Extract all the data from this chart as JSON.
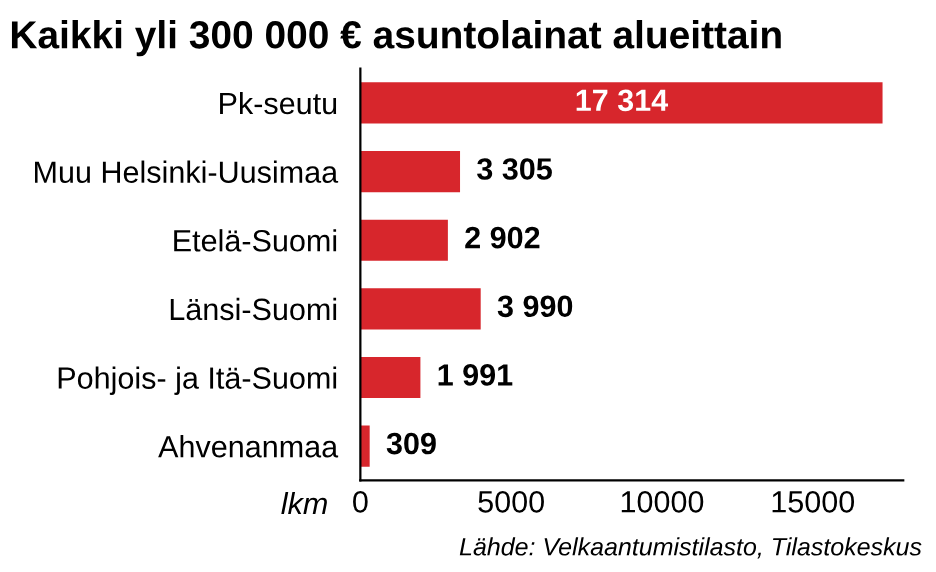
{
  "chart_data": {
    "type": "bar",
    "orientation": "horizontal",
    "title": "Kaikki yli 300 000 € asuntolainat alueittain",
    "categories": [
      "Pk-seutu",
      "Muu Helsinki-Uusimaa",
      "Etelä-Suomi",
      "Länsi-Suomi",
      "Pohjois- ja Itä-Suomi",
      "Ahvenanmaa"
    ],
    "values": [
      17314,
      3305,
      2902,
      3990,
      1991,
      309
    ],
    "value_labels": [
      "17 314",
      "3 305",
      "2 902",
      "3 990",
      "1 991",
      "309"
    ],
    "color": "#d7262c",
    "xlabel": "lkm",
    "xlim": [
      0,
      18000
    ],
    "xticks": [
      0,
      5000,
      10000,
      15000
    ],
    "grid": false,
    "annotations": [
      "Lähde: Velkaantumistilasto, Tilastokeskus"
    ]
  }
}
